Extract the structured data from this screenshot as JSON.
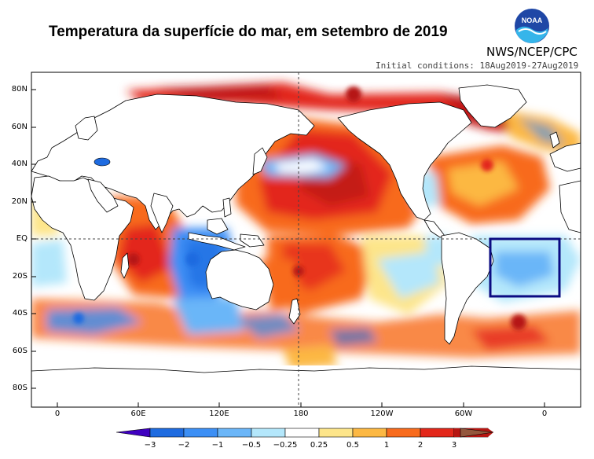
{
  "header": {
    "title": "Temperatura da superfície do mar, em setembro de 2019",
    "agency": "NWS/NCEP/CPC",
    "logo_text": "NOAA",
    "initial_conditions": "Initial conditions: 18Aug2019-27Aug2019"
  },
  "axes": {
    "lat_labels": [
      "80N",
      "60N",
      "40N",
      "20N",
      "EQ",
      "20S",
      "40S",
      "60S",
      "80S"
    ],
    "lon_labels": [
      "0",
      "60E",
      "120E",
      "180",
      "120W",
      "60W",
      "0"
    ]
  },
  "colorbar": {
    "tick_labels": [
      "−3",
      "−2",
      "−1",
      "−0.5",
      "−0.25",
      "0.25",
      "0.5",
      "1",
      "2",
      "3"
    ],
    "colors": [
      "#3f00c0",
      "#1e6be0",
      "#3c8ff5",
      "#6bb6f8",
      "#b4e7fb",
      "#ffffff",
      "#fde58a",
      "#fcb843",
      "#f86b1d",
      "#e3271a",
      "#b61612",
      "#93573c"
    ]
  },
  "highlight_box": {
    "color": "#0b0b82",
    "lat_range": [
      "5N",
      "33S"
    ],
    "lon_range": [
      "40W",
      "10E"
    ]
  },
  "colors": {
    "warm_strong": "#b61612",
    "warm": "#e3271a",
    "warm_mid": "#f86b1d",
    "warm_light": "#fcb843",
    "warm_pale": "#fde58a",
    "cool_pale": "#b4e7fb",
    "cool_light": "#6bb6f8",
    "cool": "#3c8ff5",
    "land": "#ffffff"
  }
}
